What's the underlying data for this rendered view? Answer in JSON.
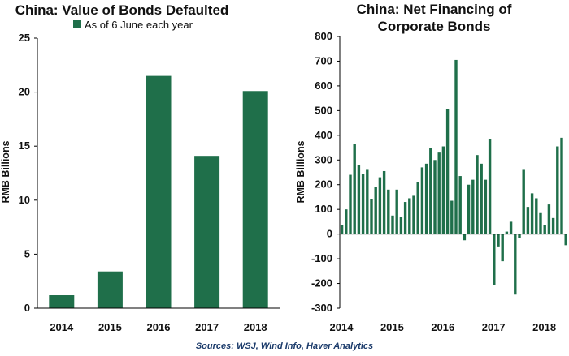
{
  "sources": "Sources: WSJ, Wind Info, Haver Analytics",
  "colors": {
    "bar": "#1f6f4a",
    "axis": "#000000"
  },
  "chart_data": [
    {
      "type": "bar",
      "title": "China: Value of Bonds Defaulted",
      "ylabel": "RMB Billions",
      "legend": "As of 6 June each year",
      "legend_position": "top",
      "categories": [
        "2014",
        "2015",
        "2016",
        "2017",
        "2018"
      ],
      "values": [
        1.2,
        3.4,
        21.5,
        14.1,
        20.1
      ],
      "ylim": [
        0,
        25
      ],
      "yticks": [
        "0",
        "5",
        "10",
        "15",
        "20",
        "25"
      ],
      "grid": false
    },
    {
      "type": "bar",
      "title_lines": [
        "China: Net Financing of",
        "Corporate Bonds"
      ],
      "ylabel": "RMB Billions",
      "x_start": "2014-01",
      "frequency": "monthly",
      "xticks": [
        "2014",
        "2015",
        "2016",
        "2017",
        "2018"
      ],
      "values": [
        35,
        100,
        240,
        365,
        280,
        245,
        260,
        140,
        190,
        230,
        255,
        180,
        75,
        180,
        70,
        130,
        145,
        155,
        210,
        270,
        285,
        350,
        300,
        330,
        355,
        505,
        135,
        705,
        235,
        -25,
        200,
        220,
        320,
        285,
        220,
        385,
        -205,
        -50,
        -110,
        10,
        50,
        -245,
        -15,
        260,
        110,
        165,
        145,
        85,
        35,
        120,
        65,
        355,
        390,
        -45
      ],
      "ylim": [
        -300,
        800
      ],
      "yticks": [
        "-300",
        "-200",
        "-100",
        "0",
        "100",
        "200",
        "300",
        "400",
        "500",
        "600",
        "700",
        "800"
      ],
      "grid": false
    }
  ]
}
